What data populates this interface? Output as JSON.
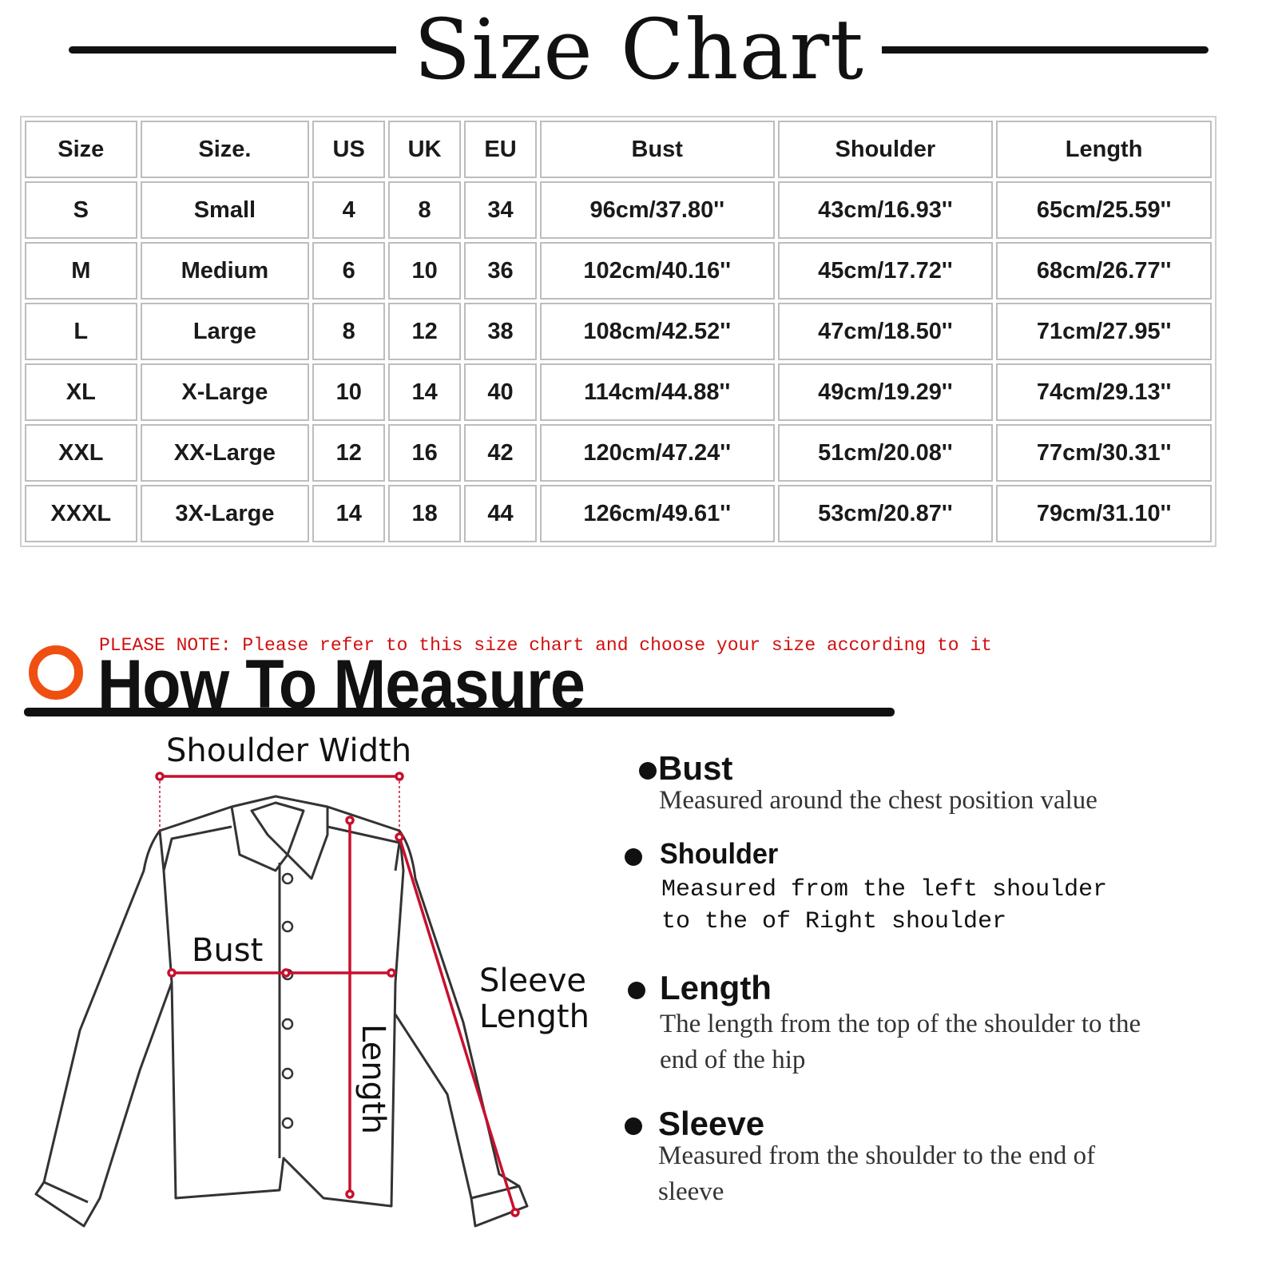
{
  "title": "Size Chart",
  "table": {
    "headers": [
      "Size",
      "Size.",
      "US",
      "UK",
      "EU",
      "Bust",
      "Shoulder",
      "Length"
    ],
    "rows": [
      [
        "S",
        "Small",
        "4",
        "8",
        "34",
        "96cm/37.80''",
        "43cm/16.93''",
        "65cm/25.59''"
      ],
      [
        "M",
        "Medium",
        "6",
        "10",
        "36",
        "102cm/40.16''",
        "45cm/17.72''",
        "68cm/26.77''"
      ],
      [
        "L",
        "Large",
        "8",
        "12",
        "38",
        "108cm/42.52''",
        "47cm/18.50''",
        "71cm/27.95''"
      ],
      [
        "XL",
        "X-Large",
        "10",
        "14",
        "40",
        "114cm/44.88''",
        "49cm/19.29''",
        "74cm/29.13''"
      ],
      [
        "XXL",
        "XX-Large",
        "12",
        "16",
        "42",
        "120cm/47.24''",
        "51cm/20.08''",
        "77cm/30.31''"
      ],
      [
        "XXXL",
        "3X-Large",
        "14",
        "18",
        "44",
        "126cm/49.61''",
        "53cm/20.87''",
        "79cm/31.10''"
      ]
    ]
  },
  "note": "PLEASE NOTE: Please refer to this size chart and choose your size according to it",
  "measure": {
    "title": "How To Measure",
    "icon": "orange-ring-icon",
    "accent_color": "#f04f12",
    "note_color": "#d01010",
    "line_color": "#c8102e"
  },
  "diagram": {
    "shoulder_width": "Shoulder Width",
    "bust": "Bust",
    "length": "Length",
    "sleeve_1": "Sleeve",
    "sleeve_2": "Length"
  },
  "items": [
    {
      "title": "Bust",
      "desc": "Measured around the chest position value"
    },
    {
      "title": "Shoulder",
      "desc": "Measured from the left shoulder to the of Right shoulder"
    },
    {
      "title": "Length",
      "desc": "The length from the top of the shoulder to the end of the hip"
    },
    {
      "title": "Sleeve",
      "desc": "Measured from the shoulder to the end of sleeve"
    }
  ]
}
